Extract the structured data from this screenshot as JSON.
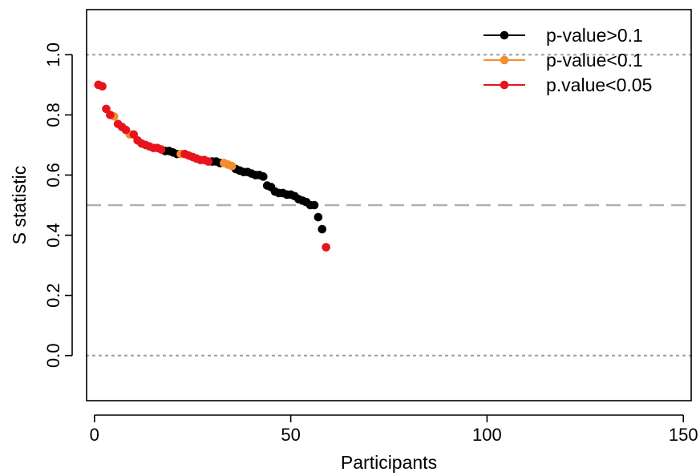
{
  "chart_data": {
    "type": "scatter",
    "title": "",
    "xlabel": "Participants",
    "ylabel": "S statistic",
    "xlim": [
      -2,
      152
    ],
    "ylim": [
      -0.15,
      1.15
    ],
    "xticks": [
      0,
      50,
      100,
      150
    ],
    "yticks": [
      0.0,
      0.2,
      0.4,
      0.6,
      0.8,
      1.0
    ],
    "xtick_labels": [
      "0",
      "50",
      "100",
      "150"
    ],
    "ytick_labels": [
      "0.0",
      "0.2",
      "0.4",
      "0.6",
      "0.8",
      "1.0"
    ],
    "reference_lines": [
      {
        "y": 1.0,
        "style": "dotted",
        "color": "#9e9e9e"
      },
      {
        "y": 0.5,
        "style": "dashed",
        "color": "#b0b0b0"
      },
      {
        "y": 0.0,
        "style": "dotted",
        "color": "#9e9e9e"
      }
    ],
    "legend_position": "top-right",
    "series": [
      {
        "name": "p-value>0.1",
        "color": "#000000",
        "x": [
          18,
          19,
          20,
          21,
          30,
          31,
          32,
          36,
          37,
          38,
          39,
          40,
          41,
          42,
          43,
          44,
          45,
          46,
          47,
          48,
          49,
          50,
          51,
          52,
          53,
          54,
          55,
          56,
          57,
          58
        ],
        "y": [
          0.68,
          0.68,
          0.675,
          0.67,
          0.645,
          0.645,
          0.64,
          0.62,
          0.615,
          0.61,
          0.61,
          0.605,
          0.6,
          0.6,
          0.595,
          0.565,
          0.56,
          0.545,
          0.54,
          0.54,
          0.535,
          0.535,
          0.53,
          0.52,
          0.515,
          0.51,
          0.5,
          0.5,
          0.46,
          0.42
        ]
      },
      {
        "name": "p-value<0.1",
        "color": "#f28e2b",
        "x": [
          5,
          9,
          22,
          33,
          34,
          35
        ],
        "y": [
          0.795,
          0.735,
          0.67,
          0.64,
          0.635,
          0.63
        ]
      },
      {
        "name": "p.value<0.05",
        "color": "#e8141d",
        "x": [
          1,
          2,
          3,
          4,
          6,
          7,
          8,
          10,
          11,
          12,
          13,
          14,
          15,
          16,
          17,
          23,
          24,
          25,
          26,
          27,
          28,
          29,
          59
        ],
        "y": [
          0.9,
          0.895,
          0.82,
          0.8,
          0.77,
          0.76,
          0.75,
          0.735,
          0.715,
          0.705,
          0.7,
          0.695,
          0.69,
          0.69,
          0.685,
          0.67,
          0.665,
          0.66,
          0.655,
          0.65,
          0.65,
          0.645,
          0.36
        ]
      }
    ]
  }
}
